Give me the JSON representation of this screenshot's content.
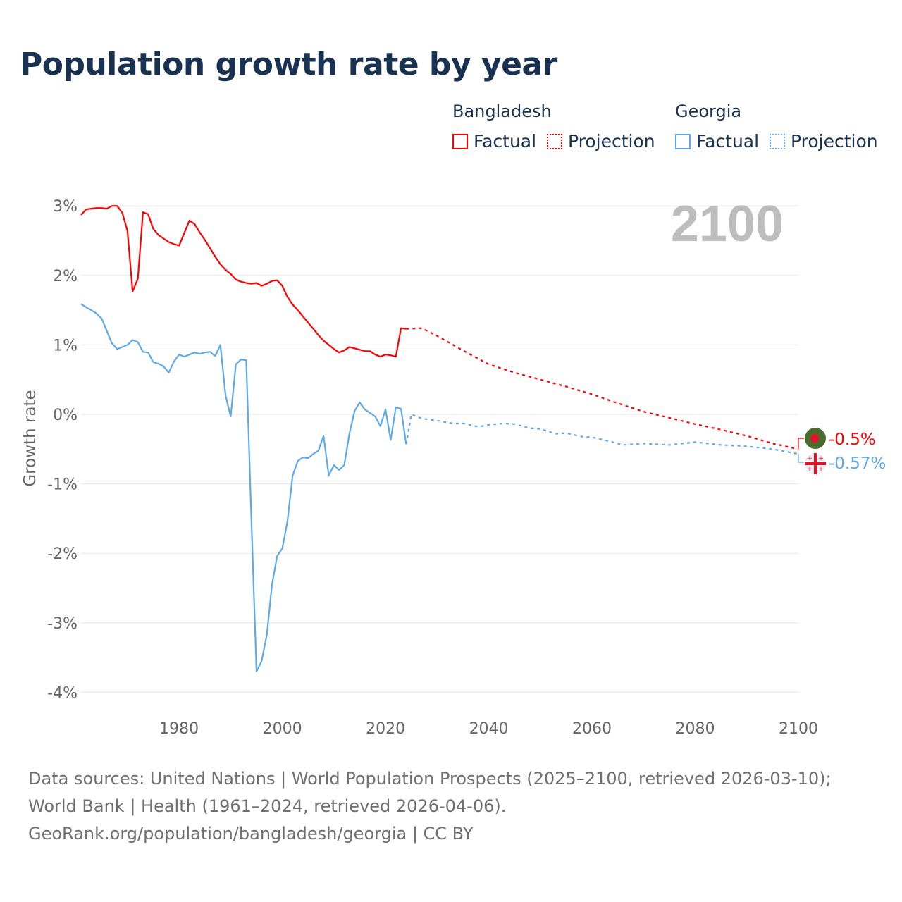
{
  "title": "Population growth rate by year",
  "legend": {
    "groups": [
      {
        "country": "Bangladesh",
        "color": "#ff0000",
        "factual": "Factual",
        "projection": "Projection"
      },
      {
        "country": "Georgia",
        "color": "#5ea9e9",
        "factual": "Factual",
        "projection": "Projection"
      }
    ]
  },
  "footer": {
    "sources": "Data sources: United Nations | World Population Prospects (2025–2100, retrieved 2026-03-10); World Bank | Health (1961–2024, retrieved 2026-04-06).",
    "url": "GeoRank.org/population/bangladesh/georgia | CC BY"
  },
  "chart_data": {
    "type": "line",
    "title": "Population growth rate by year",
    "ylabel": "Growth rate",
    "xlabel": "",
    "year_display": "2100",
    "xlim": [
      1961,
      2100
    ],
    "ylim": [
      -4.3,
      3.2
    ],
    "x_ticks": [
      "1980",
      "2000",
      "2020",
      "2040",
      "2060",
      "2080",
      "2100"
    ],
    "x_tick_values": [
      1980,
      2000,
      2020,
      2040,
      2060,
      2080,
      2100
    ],
    "y_ticks": [
      "3%",
      "2%",
      "1%",
      "0%",
      "-1%",
      "-2%",
      "-3%",
      "-4%"
    ],
    "y_tick_values": [
      3,
      2,
      1,
      0,
      -1,
      -2,
      -3,
      -4
    ],
    "grid": true,
    "series": [
      {
        "name": "Bangladesh Factual",
        "country": "Bangladesh",
        "kind": "factual",
        "color": "#ff0000",
        "x_start": 1961,
        "values": [
          2.87,
          2.95,
          2.96,
          2.97,
          2.97,
          2.96,
          3.0,
          3.0,
          2.9,
          2.64,
          1.77,
          1.95,
          2.91,
          2.88,
          2.67,
          2.58,
          2.53,
          2.48,
          2.45,
          2.43,
          2.61,
          2.79,
          2.74,
          2.62,
          2.51,
          2.39,
          2.27,
          2.16,
          2.08,
          2.02,
          1.94,
          1.91,
          1.89,
          1.88,
          1.89,
          1.85,
          1.88,
          1.92,
          1.93,
          1.85,
          1.69,
          1.58,
          1.5,
          1.41,
          1.32,
          1.23,
          1.14,
          1.06,
          1.0,
          0.94,
          0.89,
          0.92,
          0.97,
          0.95,
          0.93,
          0.91,
          0.91,
          0.86,
          0.83,
          0.86,
          0.85,
          0.83,
          1.24,
          1.23
        ]
      },
      {
        "name": "Bangladesh Projection",
        "country": "Bangladesh",
        "kind": "projection",
        "color": "#ff0000",
        "x": [
          2024,
          2027,
          2030,
          2035,
          2040,
          2045,
          2050,
          2055,
          2060,
          2065,
          2070,
          2075,
          2080,
          2085,
          2090,
          2095,
          2100
        ],
        "values": [
          1.23,
          1.24,
          1.13,
          0.92,
          0.72,
          0.6,
          0.5,
          0.4,
          0.29,
          0.16,
          0.04,
          -0.05,
          -0.14,
          -0.22,
          -0.31,
          -0.42,
          -0.5
        ]
      },
      {
        "name": "Georgia Factual",
        "country": "Georgia",
        "kind": "factual",
        "color": "#5ea9e9",
        "x_start": 1961,
        "values": [
          1.59,
          1.54,
          1.5,
          1.45,
          1.38,
          1.2,
          1.02,
          0.94,
          0.97,
          1.0,
          1.07,
          1.04,
          0.9,
          0.89,
          0.75,
          0.73,
          0.69,
          0.6,
          0.76,
          0.86,
          0.83,
          0.86,
          0.89,
          0.87,
          0.89,
          0.9,
          0.84,
          1.0,
          0.27,
          -0.03,
          0.72,
          0.79,
          0.78,
          -1.5,
          -3.7,
          -3.55,
          -3.17,
          -2.45,
          -2.04,
          -1.93,
          -1.54,
          -0.88,
          -0.67,
          -0.62,
          -0.63,
          -0.57,
          -0.52,
          -0.31,
          -0.88,
          -0.73,
          -0.8,
          -0.73,
          -0.28,
          0.05,
          0.17,
          0.07,
          0.02,
          -0.03,
          -0.17,
          0.07,
          -0.37,
          0.1,
          0.08,
          -0.43
        ]
      },
      {
        "name": "Georgia Projection",
        "country": "Georgia",
        "kind": "projection",
        "color": "#5ea9e9",
        "x": [
          2024,
          2025,
          2027,
          2030,
          2033,
          2035,
          2038,
          2040,
          2043,
          2045,
          2048,
          2050,
          2053,
          2055,
          2058,
          2060,
          2063,
          2066,
          2070,
          2075,
          2080,
          2085,
          2090,
          2095,
          2100
        ],
        "values": [
          -0.43,
          0.0,
          -0.06,
          -0.09,
          -0.13,
          -0.13,
          -0.18,
          -0.15,
          -0.13,
          -0.14,
          -0.2,
          -0.21,
          -0.28,
          -0.27,
          -0.32,
          -0.33,
          -0.38,
          -0.44,
          -0.42,
          -0.44,
          -0.4,
          -0.44,
          -0.46,
          -0.5,
          -0.57
        ]
      }
    ],
    "end_labels": [
      {
        "country": "Bangladesh",
        "label": "-0.5%",
        "value": -0.5,
        "color": "#ff0000"
      },
      {
        "country": "Georgia",
        "label": "-0.57%",
        "value": -0.57,
        "color": "#5ea9e9"
      }
    ]
  }
}
